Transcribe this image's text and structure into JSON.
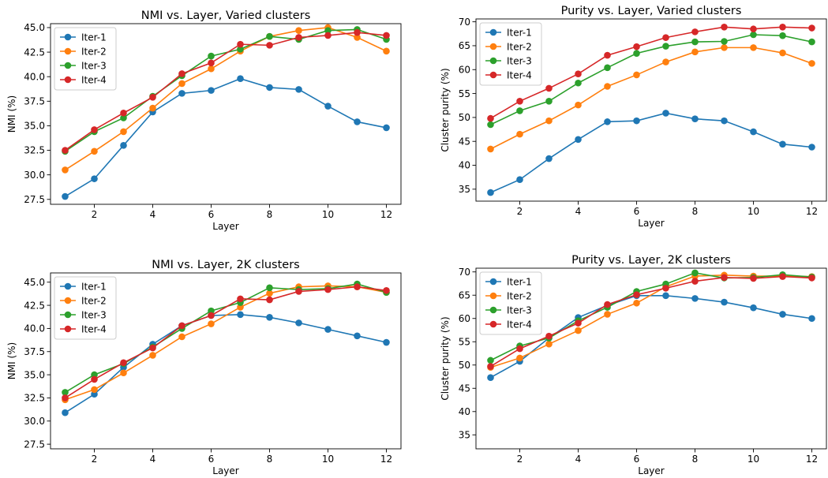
{
  "colors": {
    "Iter-1": "#1f77b4",
    "Iter-2": "#ff7f0e",
    "Iter-3": "#2ca02c",
    "Iter-4": "#d62728"
  },
  "chart_data": [
    {
      "type": "line",
      "title": "NMI vs. Layer, Varied clusters",
      "xlabel": "Layer",
      "ylabel": "NMI (%)",
      "xlim": [
        0.5,
        12.5
      ],
      "ylim": [
        27.0,
        45.4
      ],
      "xticks": [
        2,
        4,
        6,
        8,
        10,
        12
      ],
      "yticks": [
        27.5,
        30.0,
        32.5,
        35.0,
        37.5,
        40.0,
        42.5,
        45.0
      ],
      "ytick_labels": [
        "27.5",
        "30.0",
        "32.5",
        "35.0",
        "37.5",
        "40.0",
        "42.5",
        "45.0"
      ],
      "grid": false,
      "legend": "top-left",
      "x": [
        1,
        2,
        3,
        4,
        5,
        6,
        7,
        8,
        9,
        10,
        11,
        12
      ],
      "series": [
        {
          "name": "Iter-1",
          "values": [
            27.8,
            29.6,
            33.0,
            36.4,
            38.3,
            38.6,
            39.8,
            38.9,
            38.7,
            37.0,
            35.4,
            34.8
          ]
        },
        {
          "name": "Iter-2",
          "values": [
            30.5,
            32.4,
            34.4,
            36.8,
            39.3,
            40.8,
            42.6,
            44.1,
            44.7,
            45.0,
            44.0,
            42.6
          ]
        },
        {
          "name": "Iter-3",
          "values": [
            32.4,
            34.4,
            35.8,
            38.0,
            40.1,
            42.1,
            42.8,
            44.1,
            43.8,
            44.7,
            44.8,
            43.8
          ]
        },
        {
          "name": "Iter-4",
          "values": [
            32.5,
            34.6,
            36.3,
            37.9,
            40.3,
            41.4,
            43.3,
            43.2,
            44.0,
            44.2,
            44.5,
            44.2
          ]
        }
      ]
    },
    {
      "type": "line",
      "title": "Purity vs. Layer, Varied clusters",
      "xlabel": "Layer",
      "ylabel": "Cluster purity (%)",
      "xlim": [
        0.5,
        12.5
      ],
      "ylim": [
        32.5,
        70.6
      ],
      "xticks": [
        2,
        4,
        6,
        8,
        10,
        12
      ],
      "yticks": [
        35,
        40,
        45,
        50,
        55,
        60,
        65,
        70
      ],
      "ytick_labels": [
        "35",
        "40",
        "45",
        "50",
        "55",
        "60",
        "65",
        "70"
      ],
      "grid": false,
      "legend": "top-left",
      "x": [
        1,
        2,
        3,
        4,
        5,
        6,
        7,
        8,
        9,
        10,
        11,
        12
      ],
      "series": [
        {
          "name": "Iter-1",
          "values": [
            34.3,
            37.0,
            41.4,
            45.4,
            49.1,
            49.3,
            50.9,
            49.7,
            49.3,
            47.0,
            44.4,
            43.8
          ]
        },
        {
          "name": "Iter-2",
          "values": [
            43.4,
            46.5,
            49.3,
            52.6,
            56.5,
            58.9,
            61.6,
            63.7,
            64.6,
            64.6,
            63.5,
            61.3
          ]
        },
        {
          "name": "Iter-3",
          "values": [
            48.5,
            51.4,
            53.4,
            57.2,
            60.4,
            63.4,
            64.9,
            65.8,
            65.9,
            67.3,
            67.1,
            65.8
          ]
        },
        {
          "name": "Iter-4",
          "values": [
            49.8,
            53.4,
            56.1,
            59.1,
            63.0,
            64.8,
            66.7,
            67.9,
            68.9,
            68.5,
            68.9,
            68.7
          ]
        }
      ]
    },
    {
      "type": "line",
      "title": "NMI vs. Layer, 2K clusters",
      "xlabel": "Layer",
      "ylabel": "NMI (%)",
      "xlim": [
        0.5,
        12.5
      ],
      "ylim": [
        27.0,
        46.0
      ],
      "xticks": [
        2,
        4,
        6,
        8,
        10,
        12
      ],
      "yticks": [
        27.5,
        30.0,
        32.5,
        35.0,
        37.5,
        40.0,
        42.5,
        45.0
      ],
      "ytick_labels": [
        "27.5",
        "30.0",
        "32.5",
        "35.0",
        "37.5",
        "40.0",
        "42.5",
        "45.0"
      ],
      "grid": false,
      "legend": "top-left",
      "x": [
        1,
        2,
        3,
        4,
        5,
        6,
        7,
        8,
        9,
        10,
        11,
        12
      ],
      "series": [
        {
          "name": "Iter-1",
          "values": [
            30.9,
            32.9,
            35.8,
            38.3,
            40.3,
            41.4,
            41.5,
            41.2,
            40.6,
            39.9,
            39.2,
            38.5
          ]
        },
        {
          "name": "Iter-2",
          "values": [
            32.3,
            33.4,
            35.2,
            37.1,
            39.1,
            40.5,
            42.3,
            43.8,
            44.5,
            44.6,
            44.5,
            43.9
          ]
        },
        {
          "name": "Iter-3",
          "values": [
            33.1,
            35.0,
            36.2,
            38.0,
            40.0,
            41.9,
            42.8,
            44.4,
            44.2,
            44.3,
            44.8,
            43.9
          ]
        },
        {
          "name": "Iter-4",
          "values": [
            32.5,
            34.5,
            36.3,
            37.9,
            40.3,
            41.4,
            43.2,
            43.1,
            44.0,
            44.2,
            44.5,
            44.1
          ]
        }
      ]
    },
    {
      "type": "line",
      "title": "Purity vs. Layer, 2K clusters",
      "xlabel": "Layer",
      "ylabel": "Cluster purity (%)",
      "xlim": [
        0.5,
        12.5
      ],
      "ylim": [
        32.0,
        70.8
      ],
      "xticks": [
        2,
        4,
        6,
        8,
        10,
        12
      ],
      "yticks": [
        35,
        40,
        45,
        50,
        55,
        60,
        65,
        70
      ],
      "ytick_labels": [
        "35",
        "40",
        "45",
        "50",
        "55",
        "60",
        "65",
        "70"
      ],
      "grid": false,
      "legend": "top-left",
      "x": [
        1,
        2,
        3,
        4,
        5,
        6,
        7,
        8,
        9,
        10,
        11,
        12
      ],
      "series": [
        {
          "name": "Iter-1",
          "values": [
            47.3,
            50.8,
            55.8,
            60.2,
            62.8,
            64.9,
            64.9,
            64.3,
            63.5,
            62.3,
            60.9,
            60.0
          ]
        },
        {
          "name": "Iter-2",
          "values": [
            49.5,
            51.5,
            54.5,
            57.4,
            60.9,
            63.3,
            66.8,
            69.1,
            69.3,
            69.1,
            69.1,
            69.0
          ]
        },
        {
          "name": "Iter-3",
          "values": [
            51.0,
            54.1,
            55.8,
            59.5,
            62.4,
            65.8,
            67.4,
            69.8,
            68.7,
            68.8,
            69.4,
            68.9
          ]
        },
        {
          "name": "Iter-4",
          "values": [
            49.7,
            53.5,
            56.2,
            59.0,
            63.0,
            65.1,
            66.5,
            68.0,
            68.8,
            68.6,
            69.0,
            68.7
          ]
        }
      ]
    }
  ]
}
